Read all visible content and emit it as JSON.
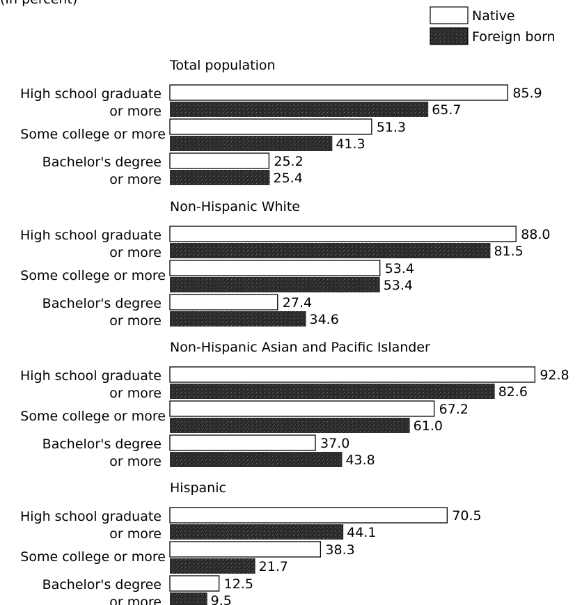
{
  "header": {
    "caption": "(In percent)"
  },
  "chart_data": {
    "type": "bar",
    "orientation": "horizontal",
    "legend": {
      "placement": "top-right",
      "entries": [
        "Native",
        "Foreign born"
      ]
    },
    "series_colors": {
      "Native": "#ffffff",
      "Foreign born": "#2a2a2a"
    },
    "categories": [
      [
        "High school graduate",
        "or more"
      ],
      [
        "Some college or more"
      ],
      [
        "Bachelor's degree",
        "or more"
      ]
    ],
    "groups": [
      {
        "title": "Total population",
        "native": [
          "85.9",
          "51.3",
          "25.2"
        ],
        "foreign": [
          "65.7",
          "41.3",
          "25.4"
        ]
      },
      {
        "title": "Non-Hispanic White",
        "native": [
          "88.0",
          "53.4",
          "27.4"
        ],
        "foreign": [
          "81.5",
          "53.4",
          "34.6"
        ]
      },
      {
        "title": "Non-Hispanic Asian and Pacific Islander",
        "native": [
          "92.8",
          "67.2",
          "37.0"
        ],
        "foreign": [
          "82.6",
          "61.0",
          "43.8"
        ]
      },
      {
        "title": "Hispanic",
        "native": [
          "70.5",
          "38.3",
          "12.5"
        ],
        "foreign": [
          "44.1",
          "21.7",
          "9.5"
        ]
      }
    ]
  }
}
